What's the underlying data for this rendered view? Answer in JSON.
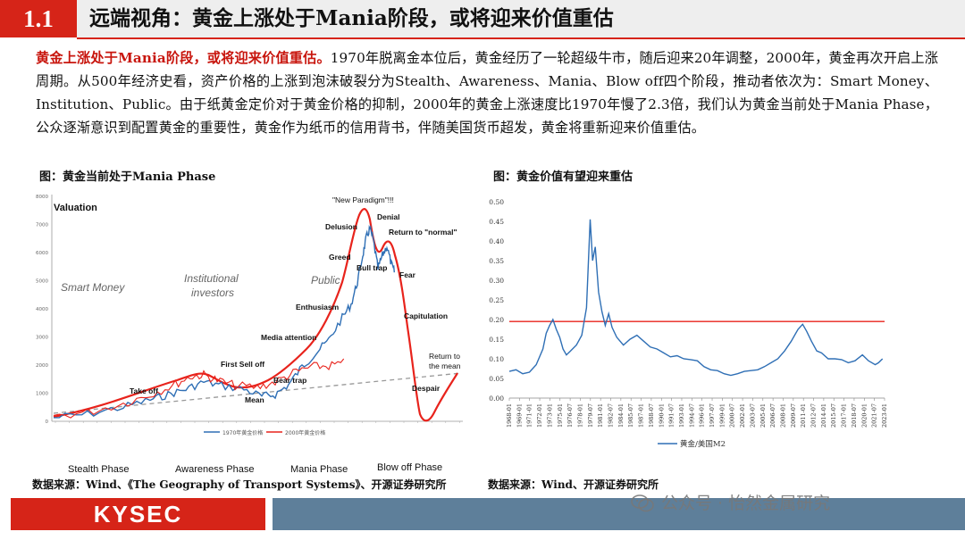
{
  "header": {
    "section_number": "1.1",
    "title": "远端视角：黄金上涨处于Mania阶段，或将迎来价值重估"
  },
  "paragraph": {
    "highlight": "黄金上涨处于Mania阶段，或将迎来价值重估。",
    "body": "1970年脱离金本位后，黄金经历了一轮超级牛市，随后迎来20年调整，2000年，黄金再次开启上涨周期。从500年经济史看，资产价格的上涨到泡沫破裂分为Stealth、Awareness、Mania、Blow off四个阶段，推动者依次为：Smart Money、Institution、Public。由于纸黄金定价对于黄金价格的抑制，2000年的黄金上涨速度比1970年慢了2.3倍，我们认为黄金当前处于Mania Phase，公众逐渐意识到配置黄金的重要性，黄金作为纸币的信用背书，伴随美国货币超发，黄金将重新迎来价值重估。"
  },
  "left_figure": {
    "title": "图：黄金当前处于Mania Phase",
    "source": "数据来源：Wind、《The Geography of Transport Systems》、开源证券研究所",
    "chart_title": "Valuation",
    "phase_areas": [
      "Smart Money",
      "Institutional investors",
      "Public"
    ],
    "annotations": [
      "\"New Paradigm\"!!!",
      "Denial",
      "Delusion",
      "Return to \"normal\"",
      "Greed",
      "Bull trap",
      "Fear",
      "Enthusiasm",
      "Capitulation",
      "Media attention",
      "Return to the mean",
      "First Sell off",
      "Bear trap",
      "Take off",
      "Despair",
      "Mean"
    ],
    "phases": [
      "Stealth Phase",
      "Awareness Phase",
      "Mania Phase",
      "Blow off  Phase"
    ],
    "legend": [
      "1970年黄金价格",
      "2000年黄金价格"
    ],
    "y_ticks": [
      "0",
      "1000",
      "2000",
      "3000",
      "4000",
      "5000",
      "6000",
      "7000",
      "8000"
    ],
    "colors": {
      "series_1970": "#2f6fb5",
      "series_2000": "#e8231c",
      "mean_line": "#999999"
    }
  },
  "right_figure": {
    "title": "图：黄金价值有望迎来重估",
    "source": "数据来源：Wind、开源证券研究所",
    "chart_data": {
      "type": "line",
      "ylim": [
        0.0,
        0.5
      ],
      "y_ticks": [
        "0.00",
        "0.05",
        "0.10",
        "0.15",
        "0.20",
        "0.25",
        "0.30",
        "0.35",
        "0.40",
        "0.45",
        "0.50"
      ],
      "x_ticks": [
        "1968-01",
        "1969-01",
        "1971-01",
        "1972-01",
        "1973-01",
        "1975-01",
        "1976-07",
        "1978-01",
        "1979-07",
        "1981-01",
        "1982-07",
        "1984-01",
        "1985-07",
        "1987-01",
        "1988-07",
        "1990-01",
        "1991-07",
        "1993-01",
        "1994-07",
        "1996-01",
        "1997-07",
        "1999-01",
        "2000-07",
        "2002-01",
        "2003-07",
        "2005-01",
        "2006-07",
        "2008-01",
        "2009-07",
        "2011-01",
        "2012-07",
        "2014-01",
        "2015-07",
        "2017-01",
        "2018-07",
        "2020-01",
        "2021-07",
        "2023-01"
      ],
      "series": [
        {
          "name": "黄金/美国M2",
          "x": [
            1968,
            1969,
            1970,
            1971,
            1972,
            1973,
            1973.5,
            1974,
            1974.5,
            1975,
            1975.5,
            1976,
            1976.5,
            1977,
            1978,
            1978.8,
            1979.5,
            1980.05,
            1980.4,
            1980.8,
            1981.3,
            1981.8,
            1982.3,
            1982.8,
            1983.3,
            1984,
            1985,
            1986,
            1987,
            1988,
            1989,
            1990,
            1991,
            1992,
            1993,
            1994,
            1995,
            1996,
            1997,
            1998,
            1999,
            2000,
            2001,
            2002,
            2003,
            2004,
            2005,
            2006,
            2007,
            2008,
            2009,
            2010,
            2011,
            2011.7,
            2012.3,
            2013,
            2013.8,
            2014.5,
            2015.5,
            2016.5,
            2017.5,
            2018.5,
            2019.5,
            2020.6,
            2021.5,
            2022.5,
            2023,
            2023.6
          ],
          "values": [
            0.068,
            0.072,
            0.062,
            0.066,
            0.085,
            0.125,
            0.165,
            0.185,
            0.2,
            0.175,
            0.155,
            0.125,
            0.11,
            0.118,
            0.135,
            0.16,
            0.23,
            0.455,
            0.35,
            0.385,
            0.27,
            0.22,
            0.185,
            0.215,
            0.18,
            0.155,
            0.135,
            0.15,
            0.16,
            0.145,
            0.13,
            0.125,
            0.115,
            0.105,
            0.108,
            0.1,
            0.098,
            0.095,
            0.08,
            0.072,
            0.07,
            0.062,
            0.058,
            0.062,
            0.068,
            0.07,
            0.072,
            0.08,
            0.09,
            0.1,
            0.12,
            0.145,
            0.175,
            0.188,
            0.17,
            0.145,
            0.12,
            0.115,
            0.1,
            0.1,
            0.098,
            0.09,
            0.095,
            0.11,
            0.095,
            0.085,
            0.09,
            0.1
          ]
        }
      ],
      "reference_line": {
        "value": 0.195,
        "color": "#e8231c"
      },
      "colors": {
        "series": "#2f6fb5",
        "axis": "#888888"
      }
    }
  },
  "footer": {
    "logo_text": "KYSEC",
    "watermark": "公众号 · 怡然金属研究"
  }
}
